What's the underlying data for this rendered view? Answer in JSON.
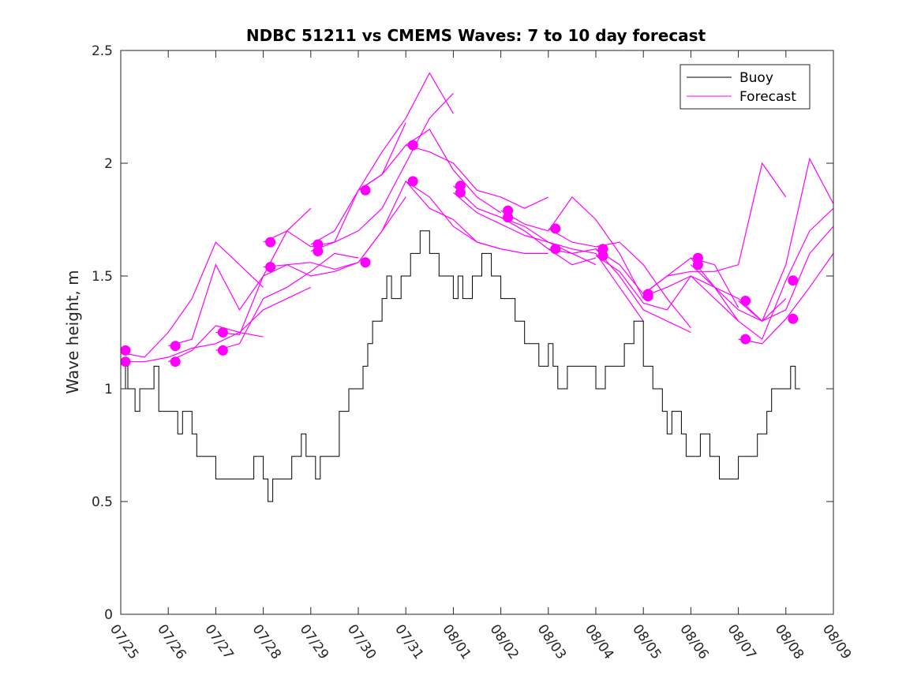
{
  "chart_data": {
    "type": "line",
    "title": "NDBC 51211 vs CMEMS Waves: 7 to 10 day forecast",
    "xlabel": "",
    "ylabel": "Wave height, m",
    "x_range": [
      "07/25",
      "08/09"
    ],
    "ylim": [
      0,
      2.5
    ],
    "y_ticks": [
      "0",
      "0.5",
      "1",
      "1.5",
      "2",
      "2.5"
    ],
    "x_ticks": [
      "07/25",
      "07/26",
      "07/27",
      "07/28",
      "07/29",
      "07/30",
      "07/31",
      "08/01",
      "08/02",
      "08/03",
      "08/04",
      "08/05",
      "08/06",
      "08/07",
      "08/08",
      "08/09"
    ],
    "grid": false,
    "legend": {
      "placement": "top-right",
      "entries": [
        "Buoy",
        "Forecast"
      ]
    },
    "colors": {
      "buoy": "#000000",
      "forecast": "#ff00ff"
    },
    "buoy": {
      "name": "Buoy",
      "x": [
        0,
        0.1,
        0.15,
        0.2,
        0.3,
        0.4,
        0.5,
        0.7,
        0.8,
        0.9,
        1.0,
        1.2,
        1.3,
        1.5,
        1.6,
        1.8,
        1.9,
        2.0,
        2.2,
        2.5,
        2.8,
        3.0,
        3.1,
        3.2,
        3.3,
        3.5,
        3.6,
        3.8,
        3.9,
        4.0,
        4.1,
        4.2,
        4.3,
        4.4,
        4.6,
        4.8,
        4.9,
        5.0,
        5.1,
        5.2,
        5.3,
        5.5,
        5.6,
        5.7,
        5.8,
        5.9,
        6.0,
        6.1,
        6.3,
        6.5,
        6.6,
        6.7,
        6.8,
        7.0,
        7.1,
        7.2,
        7.3,
        7.4,
        7.5,
        7.6,
        7.8,
        8.0,
        8.1,
        8.2,
        8.3,
        8.5,
        8.6,
        8.8,
        8.9,
        9.0,
        9.1,
        9.2,
        9.4,
        9.6,
        9.8,
        10.0,
        10.2,
        10.4,
        10.6,
        10.8,
        11.0,
        11.2,
        11.4,
        11.5,
        11.6,
        11.7,
        11.8,
        11.9,
        12.0,
        12.1,
        12.2,
        12.4,
        12.6,
        12.8,
        13.0,
        13.2,
        13.4,
        13.6,
        13.7,
        13.8,
        13.9,
        14.0,
        14.1,
        14.2,
        14.3
      ],
      "values": [
        1.0,
        1.1,
        1.0,
        1.0,
        0.9,
        1.0,
        1.0,
        1.1,
        0.9,
        0.9,
        0.9,
        0.8,
        0.9,
        0.8,
        0.7,
        0.7,
        0.7,
        0.6,
        0.6,
        0.6,
        0.7,
        0.6,
        0.5,
        0.6,
        0.6,
        0.6,
        0.7,
        0.8,
        0.7,
        0.7,
        0.6,
        0.7,
        0.7,
        0.7,
        0.9,
        1.0,
        1.0,
        1.0,
        1.1,
        1.2,
        1.3,
        1.4,
        1.5,
        1.4,
        1.4,
        1.5,
        1.5,
        1.6,
        1.7,
        1.6,
        1.6,
        1.5,
        1.5,
        1.4,
        1.5,
        1.4,
        1.4,
        1.5,
        1.5,
        1.6,
        1.5,
        1.4,
        1.4,
        1.4,
        1.3,
        1.2,
        1.2,
        1.1,
        1.1,
        1.2,
        1.1,
        1.0,
        1.1,
        1.1,
        1.1,
        1.0,
        1.1,
        1.1,
        1.2,
        1.3,
        1.1,
        1.0,
        0.9,
        0.8,
        0.9,
        0.9,
        0.8,
        0.7,
        0.7,
        0.7,
        0.8,
        0.7,
        0.6,
        0.6,
        0.7,
        0.7,
        0.8,
        0.9,
        1.0,
        1.0,
        1.0,
        1.0,
        1.1,
        1.0,
        1.0
      ]
    },
    "forecast_series": [
      {
        "x": [
          0.0,
          0.5,
          1.0,
          1.5,
          2.0,
          2.5,
          3.0
        ],
        "values": [
          1.16,
          1.14,
          1.25,
          1.4,
          1.65,
          1.55,
          1.45
        ]
      },
      {
        "x": [
          0.0,
          0.5,
          1.0,
          1.5,
          2.0,
          2.5,
          3.0
        ],
        "values": [
          1.12,
          1.12,
          1.14,
          1.18,
          1.2,
          1.25,
          1.23
        ]
      },
      {
        "x": [
          1.0,
          1.5,
          2.0,
          2.5,
          3.0,
          3.5,
          4.0
        ],
        "values": [
          1.19,
          1.22,
          1.55,
          1.35,
          1.5,
          1.7,
          1.8
        ]
      },
      {
        "x": [
          1.0,
          1.5,
          2.0,
          2.5,
          3.0,
          3.5,
          4.0
        ],
        "values": [
          1.12,
          1.17,
          1.28,
          1.25,
          1.35,
          1.4,
          1.45
        ]
      },
      {
        "x": [
          2.0,
          2.5,
          3.0,
          3.5,
          4.0,
          4.5,
          5.0
        ],
        "values": [
          1.25,
          1.24,
          1.5,
          1.55,
          1.56,
          1.53,
          1.56
        ]
      },
      {
        "x": [
          2.0,
          2.5,
          3.0,
          3.5,
          4.0,
          4.5,
          5.0
        ],
        "values": [
          1.17,
          1.2,
          1.4,
          1.45,
          1.52,
          1.6,
          1.58
        ]
      },
      {
        "x": [
          3.0,
          3.5,
          4.0,
          4.5,
          5.0,
          5.5,
          6.0
        ],
        "values": [
          1.65,
          1.7,
          1.63,
          1.65,
          1.88,
          1.95,
          2.18
        ]
      },
      {
        "x": [
          3.0,
          3.5,
          4.0,
          4.5,
          5.0,
          5.5,
          6.0
        ],
        "values": [
          1.54,
          1.55,
          1.5,
          1.52,
          1.56,
          1.7,
          1.85
        ]
      },
      {
        "x": [
          4.0,
          4.5,
          5.0,
          5.5,
          6.0,
          6.5,
          7.0
        ],
        "values": [
          1.64,
          1.7,
          1.88,
          2.05,
          2.2,
          2.4,
          2.22
        ]
      },
      {
        "x": [
          4.0,
          4.5,
          5.0,
          5.5,
          6.0,
          6.5,
          7.0
        ],
        "values": [
          1.61,
          1.65,
          1.7,
          1.8,
          2.0,
          2.2,
          2.31
        ]
      },
      {
        "x": [
          5.0,
          5.5,
          6.0,
          6.5,
          7.0,
          7.5,
          8.0
        ],
        "values": [
          1.88,
          1.95,
          2.08,
          2.15,
          1.97,
          1.85,
          1.78
        ]
      },
      {
        "x": [
          5.0,
          5.5,
          6.0,
          6.5,
          7.0,
          7.5,
          8.0
        ],
        "values": [
          1.56,
          1.7,
          1.92,
          1.85,
          1.72,
          1.65,
          1.62
        ]
      },
      {
        "x": [
          6.0,
          6.5,
          7.0,
          7.5,
          8.0,
          8.5,
          9.0
        ],
        "values": [
          2.08,
          2.05,
          2.0,
          1.88,
          1.85,
          1.8,
          1.85
        ]
      },
      {
        "x": [
          6.0,
          6.5,
          7.0,
          7.5,
          8.0,
          8.5,
          9.0
        ],
        "values": [
          1.92,
          1.8,
          1.75,
          1.65,
          1.62,
          1.6,
          1.6
        ]
      },
      {
        "x": [
          7.0,
          7.5,
          8.0,
          8.5,
          9.0,
          9.5,
          10.0
        ],
        "values": [
          1.9,
          1.8,
          1.76,
          1.7,
          1.62,
          1.55,
          1.58
        ]
      },
      {
        "x": [
          7.0,
          7.5,
          8.0,
          8.5,
          9.0,
          9.5,
          10.0
        ],
        "values": [
          1.87,
          1.78,
          1.73,
          1.68,
          1.65,
          1.6,
          1.55
        ]
      },
      {
        "x": [
          8.0,
          8.5,
          9.0,
          9.5,
          10.0,
          10.5,
          11.0
        ],
        "values": [
          1.79,
          1.73,
          1.7,
          1.85,
          1.75,
          1.6,
          1.4
        ]
      },
      {
        "x": [
          8.0,
          8.5,
          9.0,
          9.5,
          10.0,
          10.5,
          11.0
        ],
        "values": [
          1.76,
          1.72,
          1.65,
          1.62,
          1.6,
          1.45,
          1.3
        ]
      },
      {
        "x": [
          9.0,
          9.5,
          10.0,
          10.5,
          11.0,
          11.5,
          12.0
        ],
        "values": [
          1.71,
          1.65,
          1.63,
          1.65,
          1.55,
          1.4,
          1.27
        ]
      },
      {
        "x": [
          9.0,
          9.5,
          10.0,
          10.5,
          11.0,
          11.5,
          12.0
        ],
        "values": [
          1.62,
          1.6,
          1.62,
          1.5,
          1.35,
          1.3,
          1.25
        ]
      },
      {
        "x": [
          10.0,
          10.5,
          11.0,
          11.5,
          12.0,
          12.5,
          13.0
        ],
        "values": [
          1.62,
          1.55,
          1.42,
          1.5,
          1.58,
          1.55,
          1.36
        ]
      },
      {
        "x": [
          10.0,
          10.5,
          11.0,
          11.5,
          12.0,
          12.5,
          13.0
        ],
        "values": [
          1.59,
          1.52,
          1.38,
          1.35,
          1.5,
          1.4,
          1.3
        ]
      },
      {
        "x": [
          11.0,
          11.5,
          12.0,
          12.5,
          13.0,
          13.5,
          14.0
        ],
        "values": [
          1.42,
          1.5,
          1.52,
          1.52,
          1.55,
          2.0,
          1.85
        ]
      },
      {
        "x": [
          11.0,
          11.5,
          12.0,
          12.5,
          13.0,
          13.5,
          14.0
        ],
        "values": [
          1.41,
          1.45,
          1.5,
          1.45,
          1.4,
          1.3,
          1.4
        ]
      },
      {
        "x": [
          12.0,
          12.5,
          13.0,
          13.5,
          14.0,
          14.5,
          15.0
        ],
        "values": [
          1.58,
          1.45,
          1.35,
          1.3,
          1.55,
          2.02,
          1.82
        ]
      },
      {
        "x": [
          12.0,
          12.5,
          13.0,
          13.5,
          14.0,
          14.5,
          15.0
        ],
        "values": [
          1.55,
          1.45,
          1.3,
          1.22,
          1.48,
          1.7,
          1.8
        ]
      },
      {
        "x": [
          13.0,
          13.5,
          14.0,
          14.5,
          15.0
        ],
        "values": [
          1.39,
          1.3,
          1.35,
          1.6,
          1.72
        ]
      },
      {
        "x": [
          13.0,
          13.5,
          14.0,
          14.5,
          15.0
        ],
        "values": [
          1.22,
          1.2,
          1.31,
          1.45,
          1.6
        ]
      }
    ],
    "forecast_markers": {
      "x": [
        0.1,
        0.1,
        1.15,
        1.15,
        2.15,
        2.15,
        3.15,
        3.15,
        4.15,
        4.15,
        5.15,
        5.15,
        6.15,
        6.15,
        7.15,
        7.15,
        8.15,
        8.15,
        9.15,
        9.15,
        10.15,
        10.15,
        11.1,
        11.1,
        12.15,
        12.15,
        13.15,
        13.15,
        14.15,
        14.15
      ],
      "values": [
        1.17,
        1.12,
        1.19,
        1.12,
        1.25,
        1.17,
        1.65,
        1.54,
        1.64,
        1.61,
        1.88,
        1.56,
        2.08,
        1.92,
        1.9,
        1.87,
        1.79,
        1.76,
        1.71,
        1.62,
        1.62,
        1.59,
        1.42,
        1.41,
        1.58,
        1.55,
        1.39,
        1.22,
        1.48,
        1.31
      ]
    }
  }
}
